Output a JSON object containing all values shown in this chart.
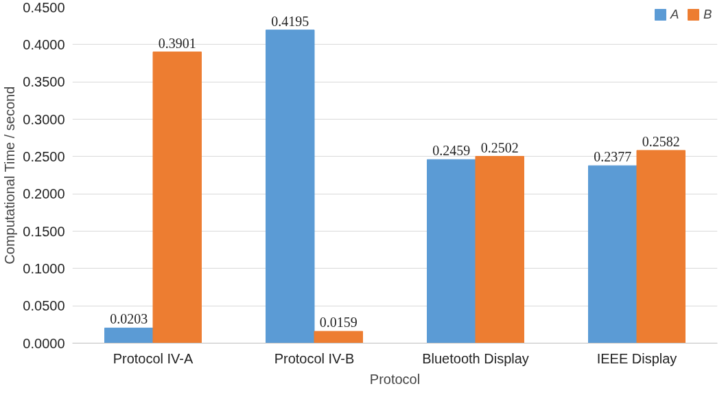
{
  "chart_data": {
    "type": "bar",
    "xlabel": "Protocol",
    "ylabel": "Computational Time / second",
    "categories": [
      "Protocol IV-A",
      "Protocol IV-B",
      "Bluetooth Display",
      "IEEE Display"
    ],
    "series": [
      {
        "name": "A",
        "color": "#5b9bd5",
        "values": [
          0.0203,
          0.4195,
          0.2459,
          0.2377
        ]
      },
      {
        "name": "B",
        "color": "#ed7d31",
        "values": [
          0.3901,
          0.0159,
          0.2502,
          0.2582
        ]
      }
    ],
    "ylim": [
      0,
      0.45
    ],
    "yticks": [
      {
        "value": 0,
        "label": "0.0000"
      },
      {
        "value": 0.05,
        "label": "0.0500"
      },
      {
        "value": 0.1,
        "label": "0.1000"
      },
      {
        "value": 0.15,
        "label": "0.1500"
      },
      {
        "value": 0.2,
        "label": "0.2000"
      },
      {
        "value": 0.25,
        "label": "0.2500"
      },
      {
        "value": 0.3,
        "label": "0.3000"
      },
      {
        "value": 0.35,
        "label": "0.3500"
      },
      {
        "value": 0.4,
        "label": "0.4000"
      },
      {
        "value": 0.45,
        "label": "0.4500"
      }
    ],
    "grid": "y",
    "legend": "top right",
    "data_labels": true
  }
}
